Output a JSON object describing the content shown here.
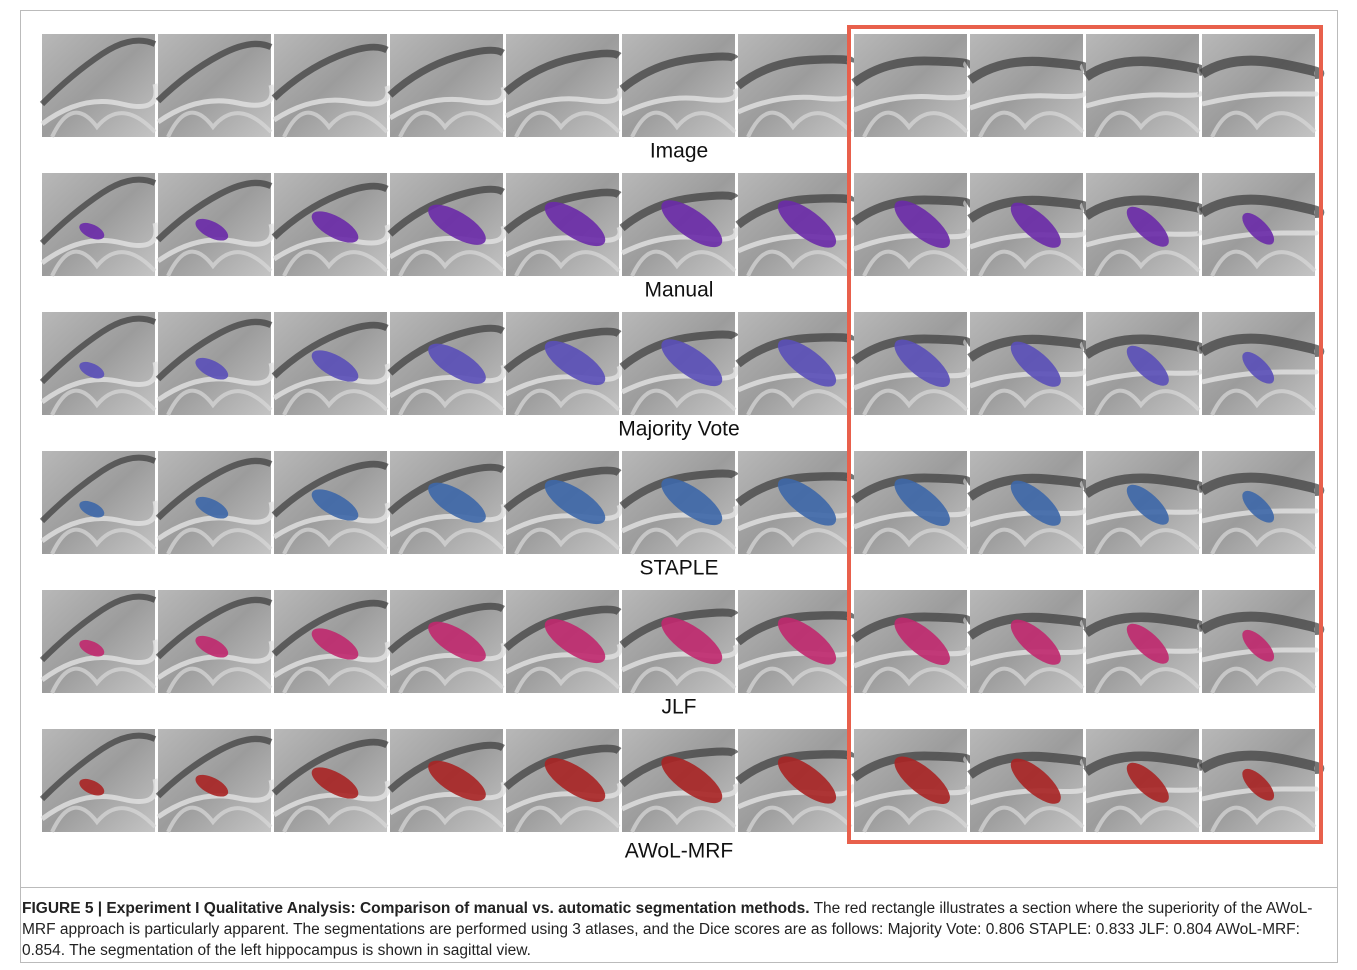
{
  "figure": {
    "rows": [
      {
        "label": "Image"
      },
      {
        "label": "Manual",
        "overlay_color": "#6a2aa8"
      },
      {
        "label": "Majority Vote",
        "overlay_color": "#5a4fb8"
      },
      {
        "label": "STAPLE",
        "overlay_color": "#3d67a8"
      },
      {
        "label": "JLF",
        "overlay_color": "#c0286e"
      },
      {
        "label": "AWoL-MRF",
        "overlay_color": "#a82424"
      }
    ],
    "caption": {
      "bold": "FIGURE 5 | Experiment I Qualitative Analysis: Comparison of manual vs. automatic segmentation methods.",
      "text": " The red rectangle illustrates a section where the superiority of the AWoL-MRF approach is particularly apparent. The segmentations are performed using 3 atlases, and the Dice scores are as follows: Majority Vote: 0.806 STAPLE: 0.833 JLF: 0.804 AWoL-MRF: 0.854. The segmentation of the left hippocampus is shown in sagittal view."
    }
  }
}
